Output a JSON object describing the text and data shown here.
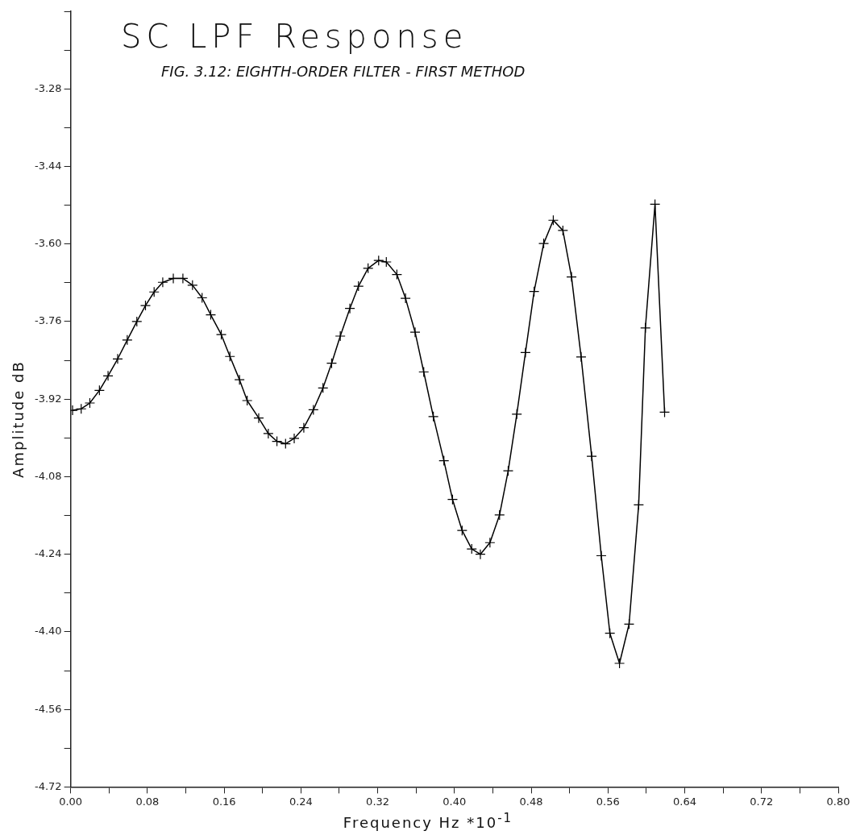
{
  "chart_data": {
    "type": "line",
    "title": "SC LPF Response",
    "subtitle": "FIG. 3.12: EIGHTH-ORDER FILTER - FIRST METHOD",
    "xlabel": "Frequency Hz  *10$^{-1}$",
    "ylabel": "Amplitude dB",
    "x": [
      0.002,
      0.011,
      0.02,
      0.03,
      0.039,
      0.049,
      0.059,
      0.069,
      0.078,
      0.087,
      0.096,
      0.107,
      0.117,
      0.127,
      0.137,
      0.146,
      0.157,
      0.166,
      0.176,
      0.184,
      0.196,
      0.206,
      0.215,
      0.224,
      0.233,
      0.243,
      0.253,
      0.263,
      0.272,
      0.281,
      0.291,
      0.3,
      0.31,
      0.321,
      0.329,
      0.34,
      0.349,
      0.359,
      0.368,
      0.378,
      0.389,
      0.398,
      0.408,
      0.418,
      0.427,
      0.437,
      0.447,
      0.456,
      0.465,
      0.474,
      0.483,
      0.493,
      0.503,
      0.513,
      0.522,
      0.532,
      0.543,
      0.553,
      0.562,
      0.572,
      0.582,
      0.592,
      0.599,
      0.609,
      0.619
    ],
    "series": [
      {
        "color": "#000000",
        "values": [
          -3.943,
          -3.94,
          -3.928,
          -3.902,
          -3.872,
          -3.837,
          -3.798,
          -3.76,
          -3.727,
          -3.699,
          -3.679,
          -3.671,
          -3.671,
          -3.685,
          -3.711,
          -3.746,
          -3.787,
          -3.832,
          -3.88,
          -3.923,
          -3.959,
          -3.991,
          -4.007,
          -4.012,
          -4.001,
          -3.979,
          -3.942,
          -3.897,
          -3.846,
          -3.79,
          -3.733,
          -3.687,
          -3.65,
          -3.634,
          -3.637,
          -3.663,
          -3.712,
          -3.782,
          -3.864,
          -3.956,
          -4.047,
          -4.127,
          -4.191,
          -4.229,
          -4.24,
          -4.216,
          -4.159,
          -4.068,
          -3.951,
          -3.824,
          -3.698,
          -3.599,
          -3.551,
          -3.572,
          -3.668,
          -3.833,
          -4.038,
          -4.243,
          -4.403,
          -4.465,
          -4.384,
          -4.138,
          -3.773,
          -3.518,
          -3.947
        ]
      }
    ],
    "xlim": [
      0,
      0.8
    ],
    "xticks": [
      {
        "value": 0,
        "label": "0.00"
      },
      {
        "value": 0.04,
        "label": null
      },
      {
        "value": 0.08,
        "label": "0.08"
      },
      {
        "value": 0.12,
        "label": null
      },
      {
        "value": 0.16,
        "label": "0.16"
      },
      {
        "value": 0.2,
        "label": null
      },
      {
        "value": 0.24,
        "label": "0.24"
      },
      {
        "value": 0.28,
        "label": null
      },
      {
        "value": 0.32,
        "label": "0.32"
      },
      {
        "value": 0.36,
        "label": null
      },
      {
        "value": 0.4,
        "label": "0.40"
      },
      {
        "value": 0.44,
        "label": null
      },
      {
        "value": 0.48,
        "label": "0.48"
      },
      {
        "value": 0.52,
        "label": null
      },
      {
        "value": 0.56,
        "label": "0.56"
      },
      {
        "value": 0.6,
        "label": null
      },
      {
        "value": 0.64,
        "label": "0.64"
      },
      {
        "value": 0.68,
        "label": null
      },
      {
        "value": 0.72,
        "label": "0.72"
      },
      {
        "value": 0.76,
        "label": null
      },
      {
        "value": 0.8,
        "label": "0.80"
      }
    ],
    "ylim": [
      -4.72,
      -3.12
    ],
    "yticks": [
      {
        "value": -4.72,
        "label": "-4.72"
      },
      {
        "value": -4.64,
        "label": null
      },
      {
        "value": -4.56,
        "label": "-4.56"
      },
      {
        "value": -4.48,
        "label": null
      },
      {
        "value": -4.4,
        "label": "-4.40"
      },
      {
        "value": -4.32,
        "label": null
      },
      {
        "value": -4.24,
        "label": "-4.24"
      },
      {
        "value": -4.16,
        "label": null
      },
      {
        "value": -4.08,
        "label": "-4.08"
      },
      {
        "value": -4.0,
        "label": null
      },
      {
        "value": -3.92,
        "label": "-3.92"
      },
      {
        "value": -3.84,
        "label": null
      },
      {
        "value": -3.76,
        "label": "-3.76"
      },
      {
        "value": -3.68,
        "label": null
      },
      {
        "value": -3.6,
        "label": "-3.60"
      },
      {
        "value": -3.52,
        "label": null
      },
      {
        "value": -3.44,
        "label": "-3.44"
      },
      {
        "value": -3.36,
        "label": null
      },
      {
        "value": -3.28,
        "label": "-3.28"
      },
      {
        "value": -3.2,
        "label": null
      },
      {
        "value": -3.12,
        "label": null
      }
    ],
    "grid": false,
    "legend": false,
    "marker": "cross",
    "line_style": "solid"
  }
}
